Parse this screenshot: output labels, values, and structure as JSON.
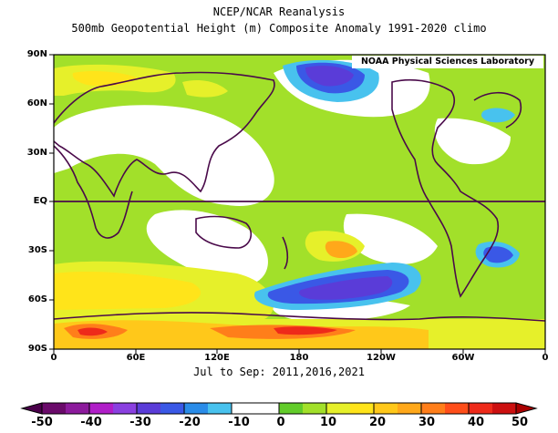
{
  "title": "NCEP/NCAR Reanalysis",
  "subtitle": "500mb Geopotential Height (m) Composite Anomaly 1991-2020 climo",
  "credit": "NOAA Physical Sciences Laboratory",
  "period": "Jul to Sep: 2011,2016,2021",
  "lat_labels": [
    "90N",
    "60N",
    "30N",
    "EQ",
    "30S",
    "60S",
    "90S"
  ],
  "lon_labels": [
    "0",
    "60E",
    "120E",
    "180",
    "120W",
    "60W",
    "0"
  ],
  "colorbar": {
    "labels": [
      "-50",
      "-40",
      "-30",
      "-20",
      "-10",
      "0",
      "10",
      "20",
      "30",
      "40",
      "50"
    ],
    "colors": [
      "#6a0a6a",
      "#8c1a9c",
      "#b01ec8",
      "#8a40e0",
      "#5a3cd8",
      "#3a58e6",
      "#2a8ce8",
      "#48c2ee",
      "#ffffff",
      "#ffffff",
      "#62cc2a",
      "#a2e02a",
      "#e6f02a",
      "#ffe41a",
      "#ffc81a",
      "#ffa81a",
      "#ff7e1a",
      "#ff4e1a",
      "#ee2a1a",
      "#cc1010"
    ],
    "under_color": "#4a004a",
    "over_color": "#aa0000"
  }
}
